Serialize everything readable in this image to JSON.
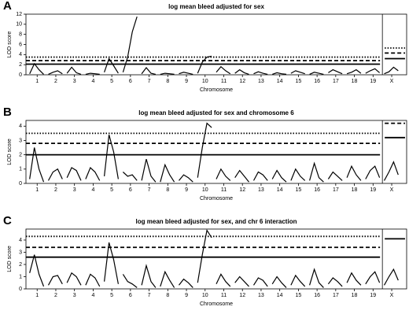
{
  "chart_data": [
    {
      "type": "line",
      "panel_label": "A",
      "title": "log mean bleed adjusted for sex",
      "ylabel": "LOD score",
      "xlabel": "Chromosome",
      "xlim": [
        -0.1,
        20.3
      ],
      "ylim": [
        0,
        12
      ],
      "yticks": [
        0,
        2,
        4,
        6,
        8,
        10,
        12
      ],
      "xticks": [
        {
          "value": 0.5,
          "label": "1"
        },
        {
          "value": 1.5,
          "label": "2"
        },
        {
          "value": 2.5,
          "label": "3"
        },
        {
          "value": 3.5,
          "label": "4"
        },
        {
          "value": 4.5,
          "label": "5"
        },
        {
          "value": 5.5,
          "label": "6"
        },
        {
          "value": 6.5,
          "label": "7"
        },
        {
          "value": 7.5,
          "label": "8"
        },
        {
          "value": 8.5,
          "label": "9"
        },
        {
          "value": 9.5,
          "label": "10"
        },
        {
          "value": 10.5,
          "label": "11"
        },
        {
          "value": 11.5,
          "label": "12"
        },
        {
          "value": 12.5,
          "label": "13"
        },
        {
          "value": 13.5,
          "label": "14"
        },
        {
          "value": 14.5,
          "label": "15"
        },
        {
          "value": 15.5,
          "label": "16"
        },
        {
          "value": 16.5,
          "label": "17"
        },
        {
          "value": 17.5,
          "label": "18"
        },
        {
          "value": 18.5,
          "label": "19"
        },
        {
          "value": 19.5,
          "label": "X"
        }
      ],
      "threshold_styles": [
        "solid",
        "dashed",
        "dotted"
      ],
      "thresholds": [
        2.1,
        2.8,
        3.5
      ],
      "x_thresholds": [
        3.2,
        4.3,
        5.3
      ],
      "color": "#000000",
      "x": [
        0.1,
        0.35,
        0.6,
        0.85,
        null,
        1.1,
        1.35,
        1.6,
        1.85,
        null,
        2.1,
        2.35,
        2.6,
        2.85,
        null,
        3.1,
        3.35,
        3.6,
        3.85,
        null,
        4.1,
        4.35,
        4.6,
        4.85,
        null,
        5.1,
        5.35,
        5.6,
        5.85,
        null,
        6.1,
        6.35,
        6.6,
        6.85,
        null,
        7.1,
        7.35,
        7.6,
        7.85,
        null,
        8.1,
        8.35,
        8.6,
        8.85,
        null,
        9.1,
        9.35,
        9.6,
        9.85,
        null,
        10.1,
        10.35,
        10.6,
        10.85,
        null,
        11.1,
        11.35,
        11.6,
        11.85,
        null,
        12.1,
        12.35,
        12.6,
        12.85,
        null,
        13.1,
        13.35,
        13.6,
        13.85,
        null,
        14.1,
        14.35,
        14.6,
        14.85,
        null,
        15.1,
        15.35,
        15.6,
        15.85,
        null,
        16.1,
        16.35,
        16.6,
        16.85,
        null,
        17.1,
        17.35,
        17.6,
        17.85,
        null,
        18.1,
        18.35,
        18.6,
        18.85,
        null,
        19.1,
        19.35,
        19.6,
        19.85
      ],
      "values": [
        0.2,
        2.2,
        1.0,
        0.1,
        null,
        0.1,
        0.5,
        0.8,
        0.2,
        null,
        0.3,
        1.5,
        0.4,
        0.1,
        null,
        0.1,
        0.3,
        0.2,
        0.1,
        null,
        0.5,
        3.2,
        1.8,
        0.3,
        null,
        0.5,
        3.5,
        8.5,
        11.5,
        null,
        0.2,
        1.4,
        0.3,
        0.1,
        null,
        0.1,
        0.3,
        0.2,
        0.1,
        null,
        0.2,
        0.5,
        0.3,
        0.1,
        null,
        0.3,
        2.5,
        3.5,
        3.7,
        null,
        0.5,
        1.6,
        0.8,
        0.2,
        null,
        0.3,
        1.0,
        0.4,
        0.1,
        null,
        0.2,
        0.6,
        0.3,
        0.1,
        null,
        0.1,
        0.4,
        0.2,
        0.1,
        null,
        0.3,
        0.8,
        0.5,
        0.2,
        null,
        0.1,
        0.5,
        0.3,
        0.1,
        null,
        0.4,
        1.0,
        0.6,
        0.2,
        null,
        0.2,
        0.5,
        1.0,
        0.3,
        null,
        0.3,
        0.8,
        1.2,
        0.4,
        null,
        0.2,
        0.6,
        1.5,
        0.8
      ]
    },
    {
      "type": "line",
      "panel_label": "B",
      "title": "log mean bleed adjusted for sex and chromosome 6",
      "ylabel": "LOD score",
      "xlabel": "Chromosome",
      "xlim": [
        -0.1,
        20.3
      ],
      "ylim": [
        0,
        4.4
      ],
      "yticks": [
        0,
        1,
        2,
        3,
        4
      ],
      "xticks": [
        {
          "value": 0.5,
          "label": "1"
        },
        {
          "value": 1.5,
          "label": "2"
        },
        {
          "value": 2.5,
          "label": "3"
        },
        {
          "value": 3.5,
          "label": "4"
        },
        {
          "value": 4.5,
          "label": "5"
        },
        {
          "value": 5.5,
          "label": "6"
        },
        {
          "value": 6.5,
          "label": "7"
        },
        {
          "value": 7.5,
          "label": "8"
        },
        {
          "value": 8.5,
          "label": "9"
        },
        {
          "value": 9.5,
          "label": "10"
        },
        {
          "value": 10.5,
          "label": "11"
        },
        {
          "value": 11.5,
          "label": "12"
        },
        {
          "value": 12.5,
          "label": "13"
        },
        {
          "value": 13.5,
          "label": "14"
        },
        {
          "value": 14.5,
          "label": "15"
        },
        {
          "value": 15.5,
          "label": "16"
        },
        {
          "value": 16.5,
          "label": "17"
        },
        {
          "value": 17.5,
          "label": "18"
        },
        {
          "value": 18.5,
          "label": "19"
        },
        {
          "value": 19.5,
          "label": "X"
        }
      ],
      "threshold_styles": [
        "solid",
        "dashed",
        "dotted"
      ],
      "thresholds": [
        2.0,
        2.8,
        3.5
      ],
      "x_thresholds": [
        3.2,
        4.2
      ],
      "color": "#000000",
      "x": [
        0.1,
        0.35,
        0.6,
        0.85,
        null,
        1.1,
        1.35,
        1.6,
        1.85,
        null,
        2.1,
        2.35,
        2.6,
        2.85,
        null,
        3.1,
        3.35,
        3.6,
        3.85,
        null,
        4.1,
        4.35,
        4.6,
        4.85,
        null,
        5.1,
        5.35,
        5.6,
        5.85,
        null,
        6.1,
        6.35,
        6.6,
        6.85,
        null,
        7.1,
        7.35,
        7.6,
        7.85,
        null,
        8.1,
        8.35,
        8.6,
        8.85,
        null,
        9.1,
        9.35,
        9.6,
        9.85,
        null,
        10.1,
        10.35,
        10.6,
        10.85,
        null,
        11.1,
        11.35,
        11.6,
        11.85,
        null,
        12.1,
        12.35,
        12.6,
        12.85,
        null,
        13.1,
        13.35,
        13.6,
        13.85,
        null,
        14.1,
        14.35,
        14.6,
        14.85,
        null,
        15.1,
        15.35,
        15.6,
        15.85,
        null,
        16.1,
        16.35,
        16.6,
        16.85,
        null,
        17.1,
        17.35,
        17.6,
        17.85,
        null,
        18.1,
        18.35,
        18.6,
        18.85,
        null,
        19.1,
        19.35,
        19.6,
        19.85
      ],
      "values": [
        0.3,
        2.5,
        1.0,
        0.1,
        null,
        0.2,
        0.8,
        1.0,
        0.3,
        null,
        0.4,
        1.1,
        0.9,
        0.2,
        null,
        0.3,
        1.1,
        0.8,
        0.2,
        null,
        0.5,
        3.4,
        2.2,
        0.3,
        null,
        0.8,
        0.5,
        0.6,
        0.2,
        null,
        0.2,
        1.7,
        0.5,
        0.1,
        null,
        0.1,
        1.3,
        0.6,
        0.1,
        null,
        0.2,
        0.6,
        0.4,
        0.1,
        null,
        0.4,
        2.5,
        4.2,
        3.9,
        null,
        0.3,
        1.0,
        0.5,
        0.2,
        null,
        0.4,
        0.9,
        0.5,
        0.1,
        null,
        0.2,
        0.8,
        0.6,
        0.2,
        null,
        0.3,
        0.9,
        0.4,
        0.1,
        null,
        0.2,
        1.0,
        0.5,
        0.2,
        null,
        0.2,
        1.4,
        0.4,
        0.1,
        null,
        0.3,
        0.8,
        0.5,
        0.2,
        null,
        0.4,
        1.2,
        0.6,
        0.2,
        null,
        0.3,
        0.9,
        1.2,
        0.4,
        null,
        0.2,
        0.8,
        1.5,
        0.6
      ]
    },
    {
      "type": "line",
      "panel_label": "C",
      "title": "log mean bleed adjusted for sex, and chr 6 interaction",
      "ylabel": "LOD score",
      "xlabel": "Chromosome",
      "xlim": [
        -0.1,
        20.3
      ],
      "ylim": [
        0,
        4.9
      ],
      "yticks": [
        0,
        1,
        2,
        3,
        4
      ],
      "xticks": [
        {
          "value": 0.5,
          "label": "1"
        },
        {
          "value": 1.5,
          "label": "2"
        },
        {
          "value": 2.5,
          "label": "3"
        },
        {
          "value": 3.5,
          "label": "4"
        },
        {
          "value": 4.5,
          "label": "5"
        },
        {
          "value": 5.5,
          "label": "6"
        },
        {
          "value": 6.5,
          "label": "7"
        },
        {
          "value": 7.5,
          "label": "8"
        },
        {
          "value": 8.5,
          "label": "9"
        },
        {
          "value": 9.5,
          "label": "10"
        },
        {
          "value": 10.5,
          "label": "11"
        },
        {
          "value": 11.5,
          "label": "12"
        },
        {
          "value": 12.5,
          "label": "13"
        },
        {
          "value": 13.5,
          "label": "14"
        },
        {
          "value": 14.5,
          "label": "15"
        },
        {
          "value": 15.5,
          "label": "16"
        },
        {
          "value": 16.5,
          "label": "17"
        },
        {
          "value": 17.5,
          "label": "18"
        },
        {
          "value": 18.5,
          "label": "19"
        },
        {
          "value": 19.5,
          "label": "X"
        }
      ],
      "threshold_styles": [
        "solid",
        "dashed",
        "dotted"
      ],
      "thresholds": [
        2.6,
        3.4,
        4.3
      ],
      "x_thresholds": [
        4.1
      ],
      "color": "#000000",
      "x": [
        0.1,
        0.35,
        0.6,
        0.85,
        null,
        1.1,
        1.35,
        1.6,
        1.85,
        null,
        2.1,
        2.35,
        2.6,
        2.85,
        null,
        3.1,
        3.35,
        3.6,
        3.85,
        null,
        4.1,
        4.35,
        4.6,
        4.85,
        null,
        5.1,
        5.35,
        5.6,
        5.85,
        null,
        6.1,
        6.35,
        6.6,
        6.85,
        null,
        7.1,
        7.35,
        7.6,
        7.85,
        null,
        8.1,
        8.35,
        8.6,
        8.85,
        null,
        9.1,
        9.35,
        9.6,
        9.85,
        null,
        10.1,
        10.35,
        10.6,
        10.85,
        null,
        11.1,
        11.35,
        11.6,
        11.85,
        null,
        12.1,
        12.35,
        12.6,
        12.85,
        null,
        13.1,
        13.35,
        13.6,
        13.85,
        null,
        14.1,
        14.35,
        14.6,
        14.85,
        null,
        15.1,
        15.35,
        15.6,
        15.85,
        null,
        16.1,
        16.35,
        16.6,
        16.85,
        null,
        17.1,
        17.35,
        17.6,
        17.85,
        null,
        18.1,
        18.35,
        18.6,
        18.85,
        null,
        19.1,
        19.35,
        19.6,
        19.85
      ],
      "values": [
        1.3,
        2.8,
        1.2,
        0.2,
        null,
        0.3,
        1.0,
        1.1,
        0.4,
        null,
        0.5,
        1.3,
        1.0,
        0.3,
        null,
        0.3,
        1.2,
        0.9,
        0.2,
        null,
        0.6,
        3.8,
        2.4,
        0.4,
        null,
        1.2,
        0.6,
        0.4,
        0.1,
        null,
        0.3,
        1.9,
        0.6,
        0.1,
        null,
        0.2,
        1.4,
        0.7,
        0.1,
        null,
        0.3,
        0.8,
        0.5,
        0.1,
        null,
        0.5,
        2.8,
        4.8,
        4.2,
        null,
        0.4,
        1.2,
        0.6,
        0.2,
        null,
        0.5,
        1.0,
        0.6,
        0.2,
        null,
        0.3,
        0.9,
        0.7,
        0.2,
        null,
        0.4,
        1.0,
        0.5,
        0.1,
        null,
        0.3,
        1.1,
        0.6,
        0.2,
        null,
        0.3,
        1.6,
        0.5,
        0.1,
        null,
        0.4,
        0.9,
        0.6,
        0.2,
        null,
        0.5,
        1.3,
        0.7,
        0.3,
        null,
        0.4,
        1.0,
        1.4,
        0.5,
        null,
        0.3,
        1.0,
        1.6,
        0.7
      ]
    }
  ]
}
